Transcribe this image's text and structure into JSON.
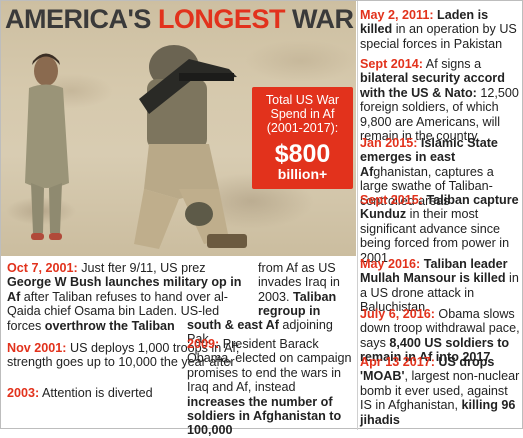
{
  "title": {
    "part1": "AMERICA'S ",
    "part2": "LONGEST",
    "part3": " WAR"
  },
  "spend": {
    "label": "Total US War Spend in Af (2001-2017):",
    "value": "$800",
    "unit": "billion+"
  },
  "colors": {
    "accent": "#e2321c",
    "text": "#222222",
    "title_gray": "#3a3a3a"
  },
  "left_entries": [
    {
      "date": "Oct 7, 2001:",
      "segments": [
        {
          "t": " Just fter 9/11, US prez ",
          "b": false
        },
        {
          "t": "George W Bush launches military op in Af",
          "b": true
        },
        {
          "t": " after Taliban refuses to hand over al-Qaida chief Osama bin Laden. US-led forces ",
          "b": false
        },
        {
          "t": "overthrow the Taliban",
          "b": true
        }
      ]
    },
    {
      "date": "Nov 2001:",
      "segments": [
        {
          "t": " US deploys 1,000 troops in Af; strength goes up to 10,000 the year after",
          "b": false
        }
      ]
    },
    {
      "date": "2003:",
      "segments": [
        {
          "t": " Attention is diverted",
          "b": false
        }
      ]
    }
  ],
  "mid_entries": [
    {
      "date": "",
      "segments": [
        {
          "t": "from Af as US invades Iraq in 2003. ",
          "b": false
        },
        {
          "t": "Taliban regroup in",
          "b": true
        }
      ]
    }
  ],
  "wide_line": {
    "t": "south & east Af",
    "rest": " adjoining Pak"
  },
  "mid_entry_2009": {
    "date": "2009:",
    "segments": [
      {
        "t": " President Barack Obama, elected on campaign promises to end the wars in Iraq and Af, instead ",
        "b": false
      },
      {
        "t": "increases the number of soldiers in Afghanistan to 100,000",
        "b": true
      }
    ]
  },
  "right_entries": [
    {
      "date": "May 2, 2011:",
      "segments": [
        {
          "t": " ",
          "b": false
        },
        {
          "t": "Laden is killed",
          "b": true
        },
        {
          "t": " in an operation by US special forces in Pakistan",
          "b": false
        }
      ]
    },
    {
      "date": "Sept 2014:",
      "segments": [
        {
          "t": " Af signs a ",
          "b": false
        },
        {
          "t": "bilateral security accord with the US & Nato:",
          "b": true
        },
        {
          "t": " 12,500 foreign soldiers, of which 9,800 are Americans, will remain in the country",
          "b": false
        }
      ]
    },
    {
      "date": "Jan 2015:",
      "segments": [
        {
          "t": " ",
          "b": false
        },
        {
          "t": "Islamic State emerges in east Af",
          "b": true
        },
        {
          "t": "ghanistan, captures a large swathe of Taliban-controlled areas",
          "b": false
        }
      ]
    },
    {
      "date": "Sept 2015:",
      "segments": [
        {
          "t": " ",
          "b": false
        },
        {
          "t": "Taliban capture Kunduz",
          "b": true
        },
        {
          "t": " in their most significant advance since being forced from power in 2001",
          "b": false
        }
      ]
    },
    {
      "date": "May 2016:",
      "segments": [
        {
          "t": " ",
          "b": false
        },
        {
          "t": "Taliban leader Mullah Mansour is killed",
          "b": true
        },
        {
          "t": " in a US drone attack in Baluchistan",
          "b": false
        }
      ]
    },
    {
      "date": "July 6, 2016:",
      "segments": [
        {
          "t": " Obama slows down troop withdrawal pace, says ",
          "b": false
        },
        {
          "t": "8,400 US soldiers to remain in Af into 2017",
          "b": true
        }
      ]
    },
    {
      "date": "Apr 13 2017:",
      "segments": [
        {
          "t": " ",
          "b": false
        },
        {
          "t": "US drops 'MOAB'",
          "b": true
        },
        {
          "t": ", largest non-nuclear bomb it ever used, against IS in Afghanistan, ",
          "b": false
        },
        {
          "t": "killing 96 jihadis",
          "b": true
        }
      ]
    }
  ]
}
